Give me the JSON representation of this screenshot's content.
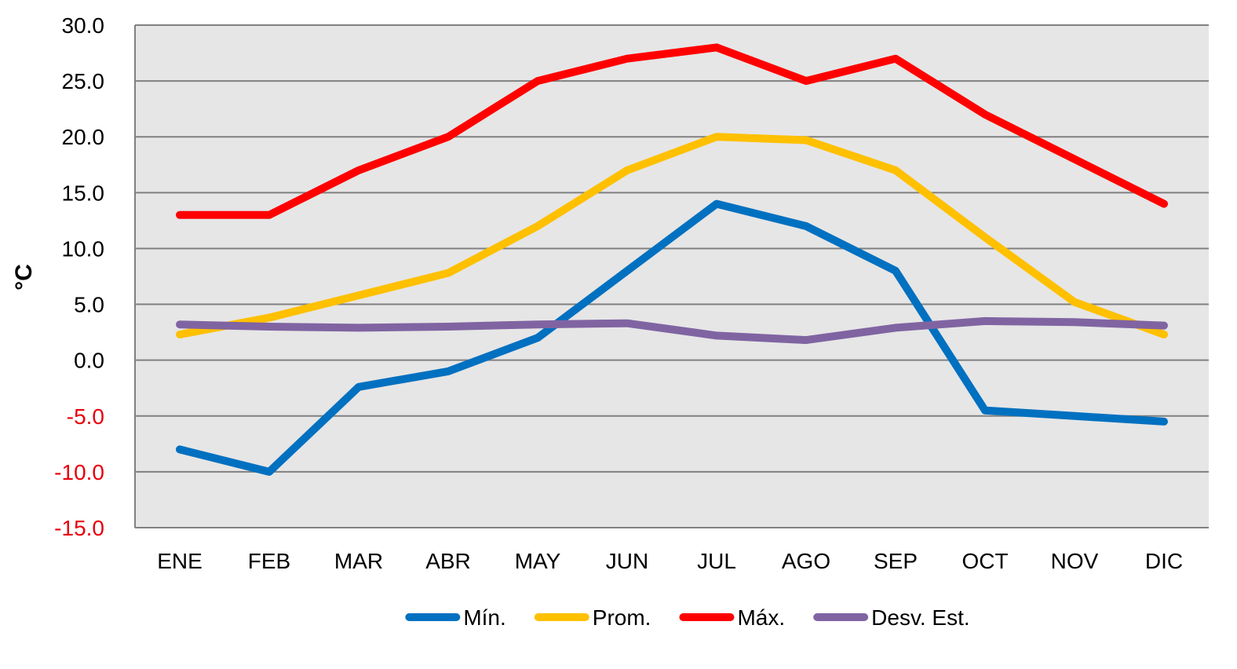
{
  "chart_data": {
    "type": "line",
    "title": "",
    "xlabel": "",
    "ylabel": "°C",
    "ylim": [
      -15,
      30
    ],
    "ytick_step": 5,
    "y_tick_decimals": 1,
    "negative_tick_color": "#e8000b",
    "grid": true,
    "plot_background": "#e6e6e6",
    "legend_position": "bottom",
    "categories": [
      "ENE",
      "FEB",
      "MAR",
      "ABR",
      "MAY",
      "JUN",
      "JUL",
      "AGO",
      "SEP",
      "OCT",
      "NOV",
      "DIC"
    ],
    "series": [
      {
        "name": "Mín.",
        "color": "#0070c0",
        "values": [
          -8.0,
          -10.0,
          -2.4,
          -1.0,
          2.0,
          8.0,
          14.0,
          12.0,
          8.0,
          -4.5,
          -5.0,
          -5.5
        ]
      },
      {
        "name": "Prom.",
        "color": "#ffc000",
        "values": [
          2.3,
          3.8,
          5.8,
          7.8,
          12.0,
          17.0,
          20.0,
          19.7,
          17.0,
          11.0,
          5.2,
          2.3
        ]
      },
      {
        "name": "Máx.",
        "color": "#ff0000",
        "values": [
          13.0,
          13.0,
          17.0,
          20.0,
          25.0,
          27.0,
          28.0,
          25.0,
          27.0,
          22.0,
          18.0,
          14.0
        ]
      },
      {
        "name": "Desv. Est.",
        "color": "#8064a2",
        "values": [
          3.2,
          3.0,
          2.9,
          3.0,
          3.2,
          3.3,
          2.2,
          1.8,
          2.9,
          3.5,
          3.4,
          3.1
        ]
      }
    ]
  }
}
